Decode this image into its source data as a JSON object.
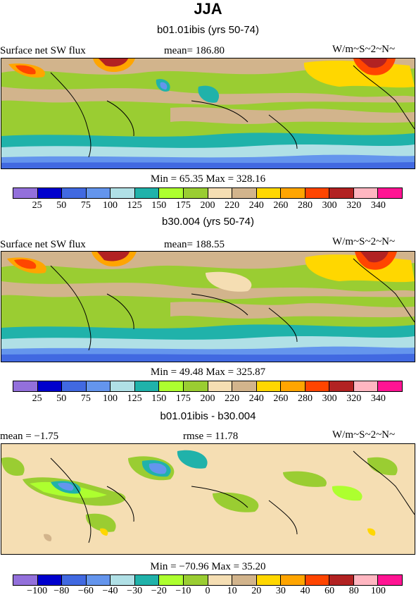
{
  "title": "JJA",
  "units": "W/m~S~2~N~",
  "panels": [
    {
      "title": "b01.01ibis (yrs 50-74)",
      "left_label": "Surface net SW flux",
      "center_label": "mean= 186.80",
      "stats": "Min =  65.35 Max = 328.16",
      "colorbar_labels": [
        "25",
        "50",
        "75",
        "100",
        "125",
        "150",
        "175",
        "200",
        "220",
        "240",
        "260",
        "280",
        "300",
        "320",
        "340"
      ]
    },
    {
      "title": "b30.004 (yrs 50-74)",
      "left_label": "Surface net SW flux",
      "center_label": "mean= 188.55",
      "stats": "Min =  49.48 Max = 325.87",
      "colorbar_labels": [
        "25",
        "50",
        "75",
        "100",
        "125",
        "150",
        "175",
        "200",
        "220",
        "240",
        "260",
        "280",
        "300",
        "320",
        "340"
      ]
    },
    {
      "title": "b01.01ibis - b30.004",
      "left_label": "mean =  −1.75",
      "center_label": "rmse =  11.78",
      "stats": "Min = −70.96 Max =  35.20",
      "colorbar_labels": [
        "−100",
        "−80",
        "−60",
        "−40",
        "−30",
        "−20",
        "−10",
        "0",
        "10",
        "20",
        "30",
        "40",
        "60",
        "80",
        "100"
      ]
    }
  ],
  "colorbar_colors": [
    "#9370db",
    "#0000cd",
    "#4169e1",
    "#6495ed",
    "#b0e0e6",
    "#20b2aa",
    "#adff2f",
    "#9acd32",
    "#f5deb3",
    "#d2b48c",
    "#ffd700",
    "#ffa500",
    "#ff4500",
    "#b22222",
    "#ffb6c1",
    "#ff1493"
  ],
  "map_style": {
    "p1_background": "#9acd32",
    "p2_background": "#9acd32",
    "p3_background": "#f5deb3"
  }
}
